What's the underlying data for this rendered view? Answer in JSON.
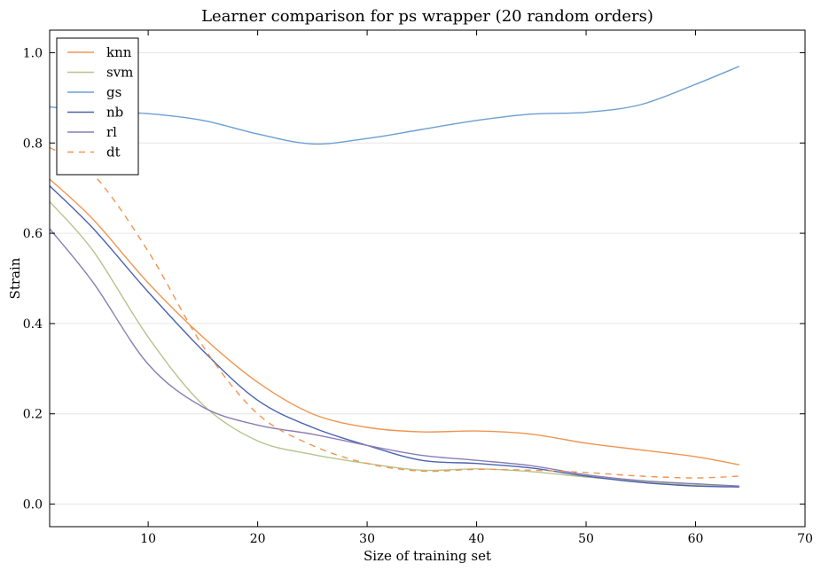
{
  "chart_data": {
    "type": "line",
    "title": "Learner comparison for ps wrapper (20 random orders)",
    "xlabel": "Size of training set",
    "ylabel": "Strain",
    "xlim": [
      1,
      70
    ],
    "ylim": [
      -0.05,
      1.05
    ],
    "xticks": [
      10,
      20,
      30,
      40,
      50,
      60,
      70
    ],
    "yticks": [
      0.0,
      0.2,
      0.4,
      0.6,
      0.8,
      1.0
    ],
    "grid": "horizontal",
    "legend_position": "top-left",
    "x": [
      1,
      5,
      10,
      15,
      20,
      25,
      30,
      35,
      40,
      45,
      50,
      55,
      60,
      64
    ],
    "series": [
      {
        "name": "knn",
        "color": "#ef9550",
        "dash": false,
        "values": [
          0.72,
          0.63,
          0.49,
          0.37,
          0.27,
          0.2,
          0.17,
          0.16,
          0.162,
          0.155,
          0.135,
          0.12,
          0.105,
          0.087
        ]
      },
      {
        "name": "svm",
        "color": "#b5c48c",
        "dash": false,
        "values": [
          0.67,
          0.56,
          0.37,
          0.22,
          0.14,
          0.11,
          0.09,
          0.075,
          0.078,
          0.072,
          0.06,
          0.05,
          0.042,
          0.04
        ]
      },
      {
        "name": "gs",
        "color": "#6a9fd0",
        "dash": false,
        "values": [
          0.88,
          0.87,
          0.865,
          0.85,
          0.82,
          0.798,
          0.81,
          0.83,
          0.85,
          0.864,
          0.868,
          0.885,
          0.93,
          0.97
        ]
      },
      {
        "name": "nb",
        "color": "#4a62b0",
        "dash": false,
        "values": [
          0.705,
          0.61,
          0.47,
          0.34,
          0.23,
          0.17,
          0.13,
          0.097,
          0.09,
          0.08,
          0.062,
          0.048,
          0.04,
          0.038
        ]
      },
      {
        "name": "rl",
        "color": "#8a7db3",
        "dash": false,
        "values": [
          0.61,
          0.49,
          0.31,
          0.215,
          0.175,
          0.155,
          0.13,
          0.108,
          0.097,
          0.085,
          0.065,
          0.052,
          0.045,
          0.04
        ]
      },
      {
        "name": "dt",
        "color": "#ef9550",
        "dash": true,
        "values": [
          0.79,
          0.73,
          0.56,
          0.35,
          0.2,
          0.13,
          0.09,
          0.073,
          0.077,
          0.075,
          0.07,
          0.062,
          0.058,
          0.062
        ]
      }
    ]
  }
}
